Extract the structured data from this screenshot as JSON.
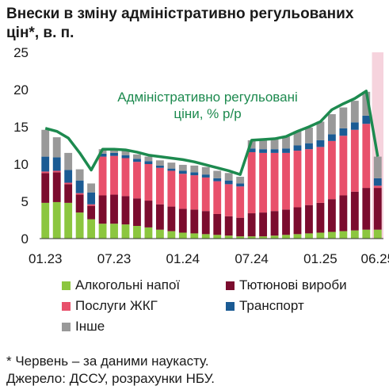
{
  "title": "Внески в зміну адміністративно регульованих цін*, в. п.",
  "footnote": "* Червень – за даними наукасту.",
  "source": "Джерело: ДССУ, розрахунки НБУ.",
  "colors": {
    "alcohol": "#8cc63f",
    "tobacco": "#7b0c2e",
    "housing": "#e8506b",
    "transport": "#1b5b94",
    "other": "#999999",
    "total": "#1d8a4f",
    "highlight": "#f6d3dd"
  },
  "chart_data": {
    "type": "bar",
    "stacked": true,
    "x_tick_labels": [
      "01.23",
      "07.23",
      "01.24",
      "07.24",
      "01.25",
      "06.25"
    ],
    "y_tick_labels": [
      "0",
      "5",
      "10",
      "15",
      "20",
      "25"
    ],
    "ylim": [
      0,
      25
    ],
    "grid": false,
    "highlight_last_period": true,
    "categories": [
      "01.23",
      "02.23",
      "03.23",
      "04.23",
      "05.23",
      "06.23",
      "07.23",
      "08.23",
      "09.23",
      "10.23",
      "11.23",
      "12.23",
      "01.24",
      "02.24",
      "03.24",
      "04.24",
      "05.24",
      "06.24",
      "07.24",
      "08.24",
      "09.24",
      "10.24",
      "11.24",
      "12.24",
      "01.25",
      "02.25",
      "03.25",
      "04.25",
      "05.25",
      "06.25"
    ],
    "series": [
      {
        "key": "alcohol",
        "name": "Алкогольні напої",
        "values": [
          4.8,
          4.9,
          4.8,
          3.5,
          2.6,
          2.0,
          2.0,
          1.9,
          1.7,
          1.5,
          1.2,
          1.0,
          0.8,
          0.7,
          0.6,
          0.5,
          0.4,
          0.3,
          0.3,
          0.3,
          0.4,
          0.5,
          0.6,
          0.7,
          0.8,
          0.9,
          1.0,
          1.1,
          1.2,
          1.2
        ]
      },
      {
        "key": "tobacco",
        "name": "Тютюнові вироби",
        "values": [
          4.0,
          4.0,
          2.5,
          2.4,
          1.8,
          3.8,
          3.9,
          3.8,
          3.7,
          3.6,
          3.4,
          3.3,
          3.2,
          3.2,
          3.1,
          2.8,
          2.6,
          2.5,
          3.1,
          3.2,
          3.3,
          3.4,
          3.6,
          3.8,
          4.0,
          4.4,
          4.8,
          5.2,
          5.6,
          5.6
        ]
      },
      {
        "key": "housing",
        "name": "Послуги ЖКГ",
        "values": [
          0.2,
          0.2,
          0.2,
          0.2,
          0.2,
          5.2,
          5.2,
          5.1,
          4.9,
          4.9,
          4.9,
          4.8,
          4.7,
          4.6,
          4.5,
          4.4,
          4.3,
          4.2,
          8.2,
          8.0,
          7.8,
          7.6,
          7.6,
          7.5,
          7.5,
          7.8,
          8.0,
          8.3,
          8.6,
          0.3
        ]
      },
      {
        "key": "transport",
        "name": "Транспорт",
        "values": [
          2.0,
          1.8,
          1.7,
          1.7,
          1.6,
          0.4,
          0.4,
          0.4,
          0.4,
          0.4,
          0.3,
          0.3,
          0.4,
          0.4,
          0.4,
          0.4,
          0.5,
          0.4,
          0.5,
          0.5,
          0.5,
          0.6,
          0.7,
          0.8,
          0.9,
          0.9,
          1.0,
          1.0,
          1.1,
          1.0
        ]
      },
      {
        "key": "other",
        "name": "Інше",
        "values": [
          3.6,
          2.7,
          2.3,
          1.5,
          1.2,
          0.6,
          0.6,
          0.6,
          0.6,
          0.6,
          0.7,
          0.8,
          0.8,
          0.9,
          1.0,
          1.0,
          1.0,
          0.9,
          1.1,
          1.2,
          1.4,
          1.6,
          1.9,
          2.1,
          2.5,
          2.7,
          2.8,
          2.9,
          3.2,
          2.9
        ]
      }
    ],
    "total": {
      "name": "Адміністративно регульовані ціни, % р/р",
      "label_line1": "Адміністративно регульовані",
      "label_line2": "ціни, % р/р",
      "values": [
        14.8,
        14.4,
        13.5,
        11.5,
        9.2,
        12.0,
        12.0,
        11.9,
        11.6,
        11.2,
        11.0,
        10.8,
        10.6,
        10.3,
        9.9,
        9.5,
        9.1,
        8.6,
        13.2,
        13.3,
        13.4,
        13.7,
        14.4,
        15.0,
        15.7,
        17.3,
        18.1,
        18.8,
        19.8,
        11.0
      ]
    }
  }
}
